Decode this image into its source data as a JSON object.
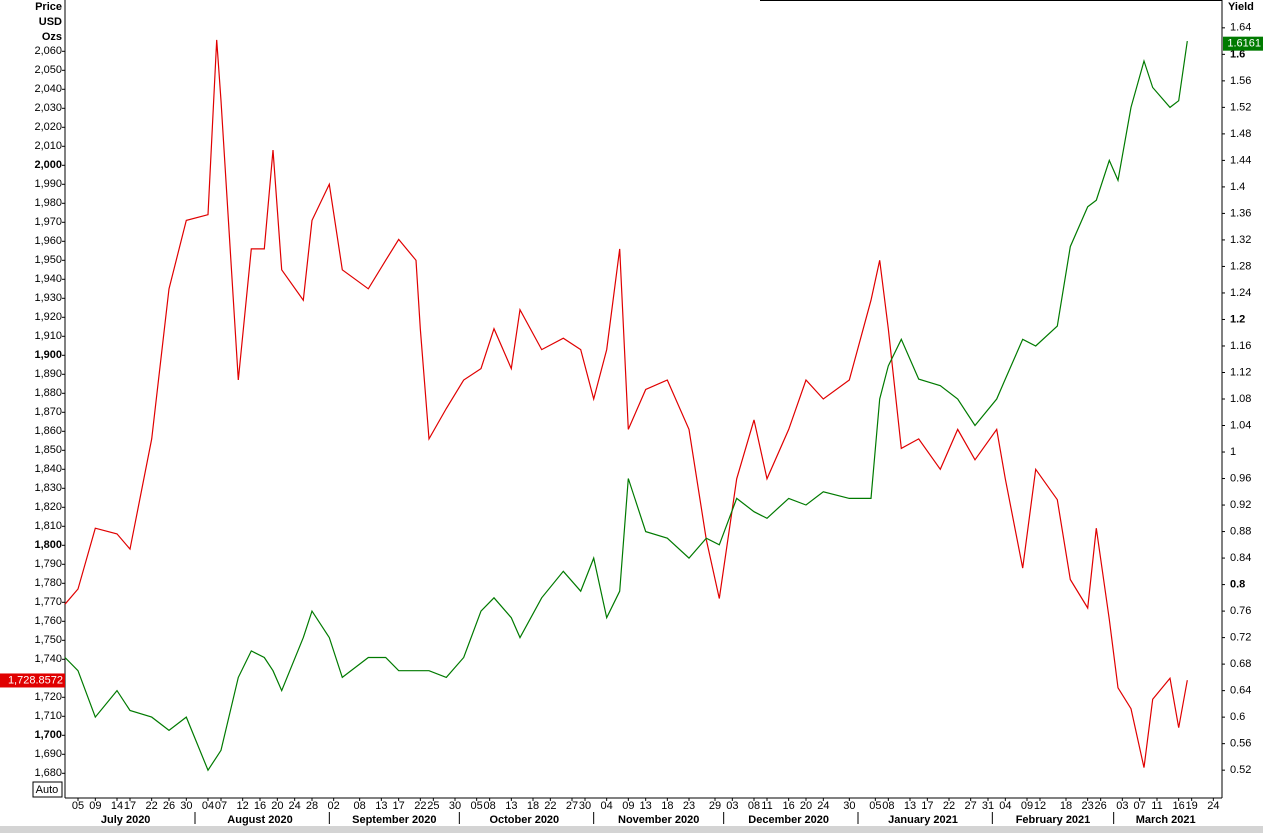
{
  "chart_data": {
    "type": "line",
    "price_axis_label": [
      "Price",
      "USD",
      "Ozs"
    ],
    "yield_axis_label": "Yield",
    "auto_button": "Auto",
    "x": [
      "2020-07-02",
      "2020-07-05",
      "2020-07-09",
      "2020-07-14",
      "2020-07-17",
      "2020-07-22",
      "2020-07-26",
      "2020-07-30",
      "2020-08-04",
      "2020-08-06",
      "2020-08-07",
      "2020-08-11",
      "2020-08-14",
      "2020-08-17",
      "2020-08-19",
      "2020-08-21",
      "2020-08-26",
      "2020-08-28",
      "2020-09-01",
      "2020-09-04",
      "2020-09-10",
      "2020-09-14",
      "2020-09-17",
      "2020-09-21",
      "2020-09-22",
      "2020-09-24",
      "2020-09-28",
      "2020-10-02",
      "2020-10-06",
      "2020-10-09",
      "2020-10-13",
      "2020-10-15",
      "2020-10-20",
      "2020-10-25",
      "2020-10-29",
      "2020-11-01",
      "2020-11-04",
      "2020-11-07",
      "2020-11-09",
      "2020-11-13",
      "2020-11-18",
      "2020-11-23",
      "2020-11-27",
      "2020-11-30",
      "2020-12-04",
      "2020-12-08",
      "2020-12-11",
      "2020-12-16",
      "2020-12-20",
      "2020-12-24",
      "2020-12-30",
      "2021-01-04",
      "2021-01-06",
      "2021-01-08",
      "2021-01-11",
      "2021-01-15",
      "2021-01-20",
      "2021-01-24",
      "2021-01-28",
      "2021-02-02",
      "2021-02-04",
      "2021-02-08",
      "2021-02-11",
      "2021-02-16",
      "2021-02-19",
      "2021-02-23",
      "2021-02-25",
      "2021-02-28",
      "2021-03-02",
      "2021-03-05",
      "2021-03-08",
      "2021-03-10",
      "2021-03-14",
      "2021-03-16",
      "2021-03-18"
    ],
    "series": [
      {
        "color": "#e00000",
        "axis": "y",
        "values": [
          1769,
          1777,
          1809,
          1806,
          1798,
          1856,
          1935,
          1971,
          1974,
          2066,
          2034,
          1887,
          1956,
          1956,
          2008,
          1945,
          1929,
          1971,
          1990,
          1945,
          1935,
          1950,
          1961,
          1950,
          1914,
          1856,
          1872,
          1887,
          1893,
          1914,
          1893,
          1924,
          1903,
          1909,
          1903,
          1877,
          1903,
          1956,
          1861,
          1882,
          1887,
          1861,
          1803,
          1772,
          1835,
          1866,
          1835,
          1861,
          1887,
          1877,
          1887,
          1929,
          1950,
          1914,
          1851,
          1856,
          1840,
          1861,
          1845,
          1861,
          1835,
          1788,
          1840,
          1824,
          1782,
          1767,
          1809,
          1761,
          1725,
          1714,
          1683,
          1719,
          1730,
          1704,
          1729
        ],
        "last_value": 1728.8572,
        "last_label": "1,728.8572"
      },
      {
        "color": "#007a00",
        "axis": "y2",
        "values": [
          0.69,
          0.67,
          0.6,
          0.64,
          0.61,
          0.6,
          0.58,
          0.6,
          0.52,
          0.54,
          0.55,
          0.66,
          0.7,
          0.69,
          0.67,
          0.64,
          0.72,
          0.76,
          0.72,
          0.66,
          0.69,
          0.69,
          0.67,
          0.67,
          0.67,
          0.67,
          0.66,
          0.69,
          0.76,
          0.78,
          0.75,
          0.72,
          0.78,
          0.82,
          0.79,
          0.84,
          0.75,
          0.79,
          0.96,
          0.88,
          0.87,
          0.84,
          0.87,
          0.86,
          0.93,
          0.91,
          0.9,
          0.93,
          0.92,
          0.94,
          0.93,
          0.93,
          1.08,
          1.13,
          1.17,
          1.11,
          1.1,
          1.08,
          1.04,
          1.08,
          1.11,
          1.17,
          1.16,
          1.19,
          1.31,
          1.37,
          1.38,
          1.44,
          1.41,
          1.52,
          1.59,
          1.55,
          1.52,
          1.53,
          1.62
        ],
        "last_value": 1.6161,
        "last_label": "1.6161"
      }
    ],
    "xlim": [
      "2020-07-02",
      "2021-03-26"
    ],
    "xticks": [
      {
        "value": "2020-07-05",
        "label": "05"
      },
      {
        "value": "2020-07-09",
        "label": "09"
      },
      {
        "value": "2020-07-14",
        "label": "14"
      },
      {
        "value": "2020-07-17",
        "label": "17"
      },
      {
        "value": "2020-07-22",
        "label": "22"
      },
      {
        "value": "2020-07-26",
        "label": "26"
      },
      {
        "value": "2020-07-30",
        "label": "30"
      },
      {
        "value": "2020-08-04",
        "label": "04"
      },
      {
        "value": "2020-08-07",
        "label": "07"
      },
      {
        "value": "2020-08-12",
        "label": "12"
      },
      {
        "value": "2020-08-16",
        "label": "16"
      },
      {
        "value": "2020-08-20",
        "label": "20"
      },
      {
        "value": "2020-08-24",
        "label": "24"
      },
      {
        "value": "2020-08-28",
        "label": "28"
      },
      {
        "value": "2020-09-02",
        "label": "02"
      },
      {
        "value": "2020-09-08",
        "label": "08"
      },
      {
        "value": "2020-09-13",
        "label": "13"
      },
      {
        "value": "2020-09-17",
        "label": "17"
      },
      {
        "value": "2020-09-22",
        "label": "22"
      },
      {
        "value": "2020-09-25",
        "label": "25"
      },
      {
        "value": "2020-09-30",
        "label": "30"
      },
      {
        "value": "2020-10-05",
        "label": "05"
      },
      {
        "value": "2020-10-08",
        "label": "08"
      },
      {
        "value": "2020-10-13",
        "label": "13"
      },
      {
        "value": "2020-10-18",
        "label": "18"
      },
      {
        "value": "2020-10-22",
        "label": "22"
      },
      {
        "value": "2020-10-27",
        "label": "27"
      },
      {
        "value": "2020-10-30",
        "label": "30"
      },
      {
        "value": "2020-11-04",
        "label": "04"
      },
      {
        "value": "2020-11-09",
        "label": "09"
      },
      {
        "value": "2020-11-13",
        "label": "13"
      },
      {
        "value": "2020-11-18",
        "label": "18"
      },
      {
        "value": "2020-11-23",
        "label": "23"
      },
      {
        "value": "2020-11-29",
        "label": "29"
      },
      {
        "value": "2020-12-03",
        "label": "03"
      },
      {
        "value": "2020-12-08",
        "label": "08"
      },
      {
        "value": "2020-12-11",
        "label": "11"
      },
      {
        "value": "2020-12-16",
        "label": "16"
      },
      {
        "value": "2020-12-20",
        "label": "20"
      },
      {
        "value": "2020-12-24",
        "label": "24"
      },
      {
        "value": "2020-12-30",
        "label": "30"
      },
      {
        "value": "2021-01-05",
        "label": "05"
      },
      {
        "value": "2021-01-08",
        "label": "08"
      },
      {
        "value": "2021-01-13",
        "label": "13"
      },
      {
        "value": "2021-01-17",
        "label": "17"
      },
      {
        "value": "2021-01-22",
        "label": "22"
      },
      {
        "value": "2021-01-27",
        "label": "27"
      },
      {
        "value": "2021-01-31",
        "label": "31"
      },
      {
        "value": "2021-02-04",
        "label": "04"
      },
      {
        "value": "2021-02-09",
        "label": "09"
      },
      {
        "value": "2021-02-12",
        "label": "12"
      },
      {
        "value": "2021-02-18",
        "label": "18"
      },
      {
        "value": "2021-02-23",
        "label": "23"
      },
      {
        "value": "2021-02-26",
        "label": "26"
      },
      {
        "value": "2021-03-03",
        "label": "03"
      },
      {
        "value": "2021-03-07",
        "label": "07"
      },
      {
        "value": "2021-03-11",
        "label": "11"
      },
      {
        "value": "2021-03-16",
        "label": "16"
      },
      {
        "value": "2021-03-19",
        "label": "19"
      },
      {
        "value": "2021-03-24",
        "label": "24"
      }
    ],
    "month_labels": [
      {
        "value": "2020-07-16",
        "label": "July 2020"
      },
      {
        "value": "2020-08-16",
        "label": "August 2020"
      },
      {
        "value": "2020-09-16",
        "label": "September 2020"
      },
      {
        "value": "2020-10-16",
        "label": "October 2020"
      },
      {
        "value": "2020-11-16",
        "label": "November 2020"
      },
      {
        "value": "2020-12-16",
        "label": "December 2020"
      },
      {
        "value": "2021-01-16",
        "label": "January 2021"
      },
      {
        "value": "2021-02-15",
        "label": "February 2021"
      },
      {
        "value": "2021-03-13",
        "label": "March 2021"
      }
    ],
    "ylim": [
      1667,
      2087
    ],
    "yticks": [
      {
        "value": 1680,
        "label": "1,680"
      },
      {
        "value": 1690,
        "label": "1,690"
      },
      {
        "value": 1700,
        "label": "1,700"
      },
      {
        "value": 1710,
        "label": "1,710"
      },
      {
        "value": 1720,
        "label": "1,720"
      },
      {
        "value": 1730,
        "label": "1,730"
      },
      {
        "value": 1740,
        "label": "1,740"
      },
      {
        "value": 1750,
        "label": "1,750"
      },
      {
        "value": 1760,
        "label": "1,760"
      },
      {
        "value": 1770,
        "label": "1,770"
      },
      {
        "value": 1780,
        "label": "1,780"
      },
      {
        "value": 1790,
        "label": "1,790"
      },
      {
        "value": 1800,
        "label": "1,800"
      },
      {
        "value": 1810,
        "label": "1,810"
      },
      {
        "value": 1820,
        "label": "1,820"
      },
      {
        "value": 1830,
        "label": "1,830"
      },
      {
        "value": 1840,
        "label": "1,840"
      },
      {
        "value": 1850,
        "label": "1,850"
      },
      {
        "value": 1860,
        "label": "1,860"
      },
      {
        "value": 1870,
        "label": "1,870"
      },
      {
        "value": 1880,
        "label": "1,880"
      },
      {
        "value": 1890,
        "label": "1,890"
      },
      {
        "value": 1900,
        "label": "1,900"
      },
      {
        "value": 1910,
        "label": "1,910"
      },
      {
        "value": 1920,
        "label": "1,920"
      },
      {
        "value": 1930,
        "label": "1,930"
      },
      {
        "value": 1940,
        "label": "1,940"
      },
      {
        "value": 1950,
        "label": "1,950"
      },
      {
        "value": 1960,
        "label": "1,960"
      },
      {
        "value": 1970,
        "label": "1,970"
      },
      {
        "value": 1980,
        "label": "1,980"
      },
      {
        "value": 1990,
        "label": "1,990"
      },
      {
        "value": 2000,
        "label": "2,000"
      },
      {
        "value": 2010,
        "label": "2,010"
      },
      {
        "value": 2020,
        "label": "2,020"
      },
      {
        "value": 2030,
        "label": "2,030"
      },
      {
        "value": 2040,
        "label": "2,040"
      },
      {
        "value": 2050,
        "label": "2,050"
      },
      {
        "value": 2060,
        "label": "2,060"
      }
    ],
    "y2lim": [
      0.478,
      1.682
    ],
    "y2ticks": [
      0.52,
      0.56,
      0.6,
      0.64,
      0.68,
      0.72,
      0.76,
      0.8,
      0.84,
      0.88,
      0.92,
      0.96,
      1,
      1.04,
      1.08,
      1.12,
      1.16,
      1.2,
      1.24,
      1.28,
      1.32,
      1.36,
      1.4,
      1.44,
      1.48,
      1.52,
      1.56,
      1.6,
      1.64
    ],
    "grid": false
  }
}
